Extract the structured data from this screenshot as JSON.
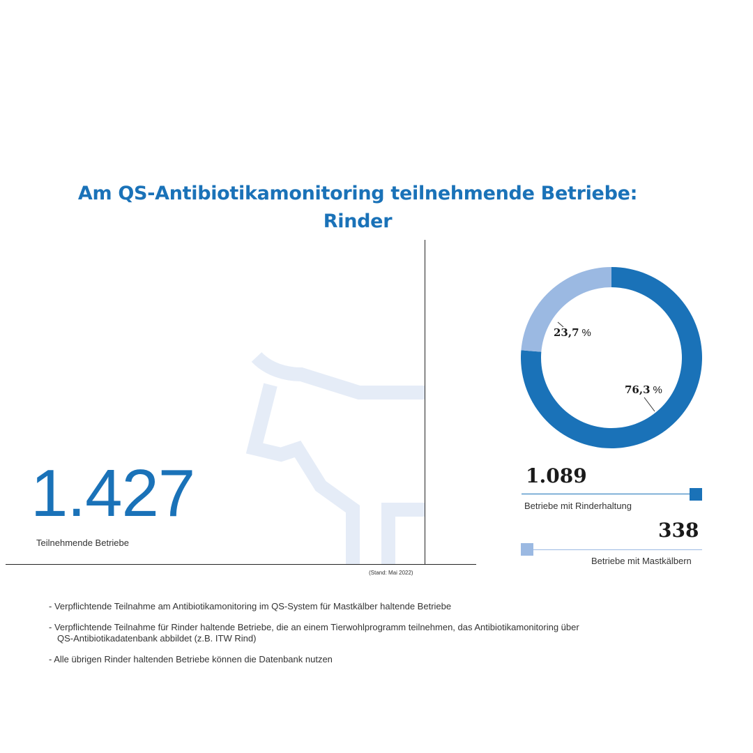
{
  "title_line1": "Am QS-Antibiotikamonitoring teilnehmende Betriebe:",
  "title_line2": "Rinder",
  "total": {
    "value": "1.427",
    "label": "Teilnehmende Betriebe"
  },
  "stand": "(Stand: Mai 2022)",
  "colors": {
    "dark": "#1a72b8",
    "light": "#9bb9e2",
    "cow": "#e5ecf7"
  },
  "chart_data": {
    "type": "pie",
    "labels": [
      "Betriebe mit Rinderhaltung",
      "Betriebe mit Mastkälbern"
    ],
    "values": [
      1089,
      338
    ],
    "percent": [
      76.3,
      23.7
    ],
    "value_labels": [
      "1.089",
      "338"
    ],
    "percent_labels": [
      "76,3",
      "23,7"
    ],
    "percent_unit": "%"
  },
  "notes": [
    {
      "line1": "- Verpflichtende Teilnahme am Antibiotikamonitoring im QS-System für Mastkälber haltende Betriebe",
      "line2": ""
    },
    {
      "line1": "- Verpflichtende Teilnahme für Rinder haltende Betriebe, die an einem Tierwohlprogramm teilnehmen, das Antibiotikamonitoring über",
      "line2": "QS-Antibiotikadatenbank abbildet (z.B. ITW Rind)"
    },
    {
      "line1": "- Alle übrigen Rinder haltenden Betriebe können die Datenbank nutzen",
      "line2": ""
    }
  ]
}
